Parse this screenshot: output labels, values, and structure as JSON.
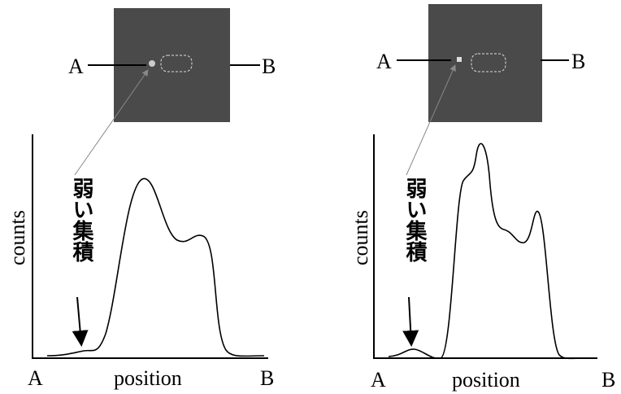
{
  "panels": [
    {
      "image": {
        "left_label": "A",
        "right_label": "B"
      },
      "plot": {
        "y_label": "counts",
        "x_label": "position",
        "x_start": "A",
        "x_end": "B",
        "annotation": "弱い集積"
      }
    },
    {
      "image": {
        "left_label": "A",
        "right_label": "B"
      },
      "plot": {
        "y_label": "counts",
        "x_label": "position",
        "x_start": "A",
        "x_end": "B",
        "annotation": "弱い集積"
      }
    }
  ]
}
